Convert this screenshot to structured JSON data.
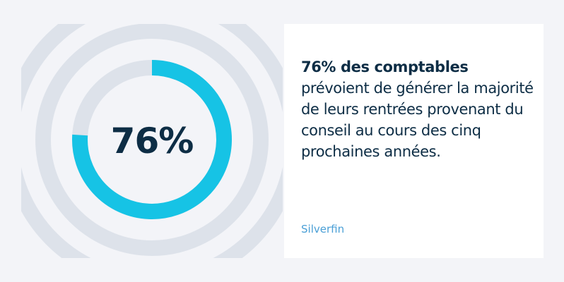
{
  "chart_data": {
    "type": "pie",
    "subtype": "donut",
    "value_percent": 76,
    "label": "76%",
    "colors": {
      "filled": "#16c3e5",
      "remaining": "#dde2ea",
      "background_rings": "#dde2ea",
      "background": "#f3f4f8"
    }
  },
  "card": {
    "headline": "76% des comptables",
    "body": "prévoient de générer la majorité de leurs rentrées provenant du conseil au cours des cinq prochaines années.",
    "source": "Silverfin"
  },
  "colors": {
    "text": "#0d2d45",
    "source": "#4a9fd6",
    "card_bg": "#ffffff"
  }
}
